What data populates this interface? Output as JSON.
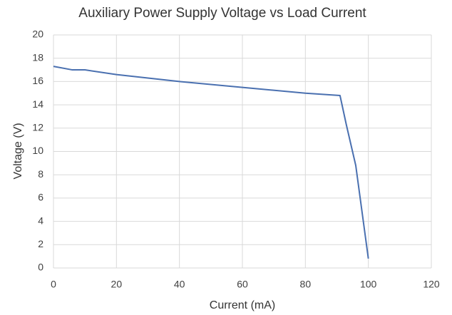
{
  "chart_data": {
    "type": "line",
    "title": "Auxiliary Power Supply Voltage vs Load Current",
    "xlabel": "Current (mA)",
    "ylabel": "Voltage (V)",
    "x": [
      0,
      6,
      10,
      20,
      40,
      60,
      80,
      91,
      93,
      96,
      100
    ],
    "series": [
      {
        "name": "Voltage",
        "color": "#4a70b0",
        "values": [
          17.3,
          17.0,
          17.0,
          16.6,
          16.0,
          15.5,
          15.0,
          14.8,
          12.3,
          8.8,
          0.8
        ]
      }
    ],
    "xlim": [
      0,
      120
    ],
    "xticks": [
      0,
      20,
      40,
      60,
      80,
      100,
      120
    ],
    "ylim": [
      0,
      20
    ],
    "yticks": [
      0,
      2,
      4,
      6,
      8,
      10,
      12,
      14,
      16,
      18,
      20
    ],
    "grid": true
  }
}
